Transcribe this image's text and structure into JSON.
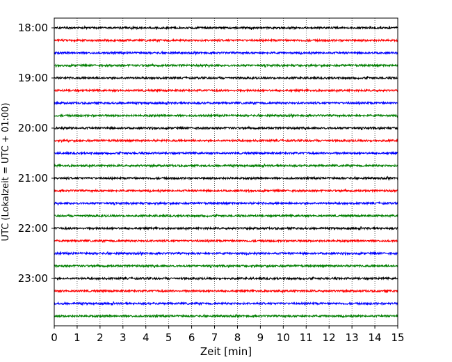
{
  "chart_data": {
    "type": "line",
    "title": "",
    "xlabel": "Zeit  [min]",
    "ylabel": "UTC (Lokalzeit = UTC + 01:00)",
    "xlim": [
      0,
      15
    ],
    "x_ticks": [
      "0",
      "1",
      "2",
      "3",
      "4",
      "5",
      "6",
      "7",
      "8",
      "9",
      "10",
      "11",
      "12",
      "13",
      "14",
      "15"
    ],
    "y_tick_labels": [
      "18:00",
      "19:00",
      "20:00",
      "21:00",
      "22:00",
      "23:00"
    ],
    "row_interval_minutes": 15,
    "start_time": "18:00",
    "row_count": 24,
    "row_colors": [
      "#000000",
      "#ff0000",
      "#0000ff",
      "#007f00"
    ],
    "grid": "vertical dotted at every minute",
    "legend": "none"
  }
}
